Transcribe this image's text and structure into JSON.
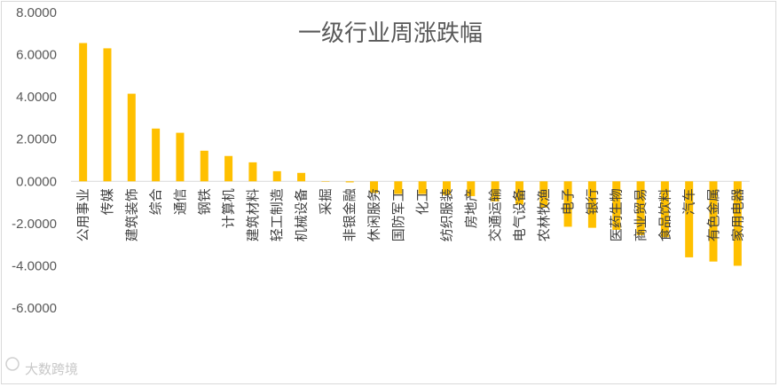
{
  "chart_data": {
    "type": "bar",
    "title": "一级行业周涨跌幅",
    "xlabel": "",
    "ylabel": "",
    "ylim": [
      -6,
      8
    ],
    "yticks": [
      "8.0000",
      "6.0000",
      "4.0000",
      "2.0000",
      "0.0000",
      "-2.0000",
      "-4.0000",
      "-6.0000"
    ],
    "grid": false,
    "legend": "none",
    "bar_color": "#FFC000",
    "categories": [
      "公用事业",
      "传媒",
      "建筑装饰",
      "综合",
      "通信",
      "钢铁",
      "计算机",
      "建筑材料",
      "轻工制造",
      "机械设备",
      "采掘",
      "非银金融",
      "休闲服务",
      "国防军工",
      "化工",
      "纺织服装",
      "房地产",
      "交通运输",
      "电气设备",
      "农林牧渔",
      "电子",
      "银行",
      "医药生物",
      "商业贸易",
      "食品饮料",
      "汽车",
      "有色金属",
      "家用电器"
    ],
    "values": [
      6.55,
      6.3,
      4.15,
      2.5,
      2.3,
      1.45,
      1.2,
      0.9,
      0.48,
      0.4,
      0.0,
      -0.05,
      -0.55,
      -0.6,
      -0.6,
      -0.65,
      -0.7,
      -0.95,
      -1.1,
      -1.25,
      -2.15,
      -2.2,
      -2.3,
      -2.55,
      -2.65,
      -3.6,
      -3.8,
      -4.0
    ]
  },
  "watermark": "大数跨境"
}
